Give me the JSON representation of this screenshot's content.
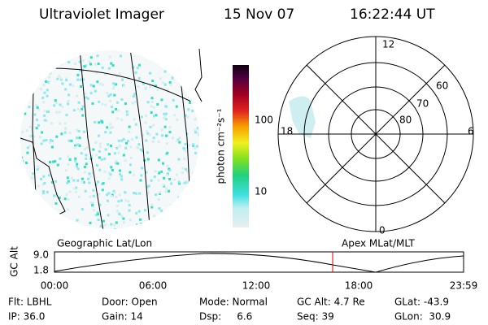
{
  "header": {
    "instrument": "Ultraviolet Imager",
    "date": "15 Nov 07",
    "time": "16:22:44 UT"
  },
  "colorbar": {
    "label": "photon cm⁻²s⁻¹",
    "ticks": [
      "100",
      "10"
    ]
  },
  "polar": {
    "labels": {
      "top": "12",
      "bottom": "0",
      "left": "18",
      "right": "6"
    },
    "rings": [
      "60",
      "70",
      "80"
    ]
  },
  "timeline": {
    "left_title": "Geographic Lat/Lon",
    "right_title": "Apex MLat/MLT",
    "axis_label": "GC Alt",
    "y_ticks": [
      "9.0",
      "1.8"
    ],
    "x_ticks": [
      "00:00",
      "06:00",
      "12:00",
      "18:00",
      "23:59"
    ]
  },
  "status": {
    "rows": [
      [
        "Flt: LBHL",
        "Door: Open",
        "Mode: Normal",
        "GC Alt: 4.7 Re",
        "GLat: -43.9"
      ],
      [
        "IP: 36.0",
        "Gain: 14",
        "Dsp:     6.6",
        "Seq: 39",
        "GLon:  30.9"
      ]
    ]
  }
}
